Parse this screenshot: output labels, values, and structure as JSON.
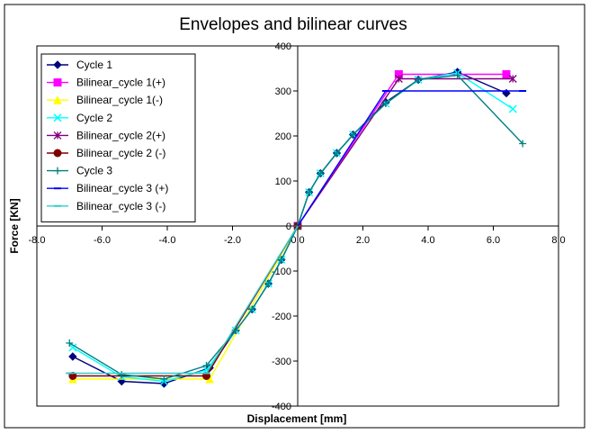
{
  "chart_data": {
    "type": "line",
    "title": "Envelopes and bilinear curves",
    "xlabel": "Displacement [mm]",
    "ylabel": "Force [KN]",
    "xlim": [
      -8,
      8
    ],
    "ylim": [
      -400,
      400
    ],
    "xticks": [
      "-8.0",
      "-6.0",
      "-4.0",
      "-2.0",
      "0.0",
      "2.0",
      "4.0",
      "6.0",
      "8.0"
    ],
    "yticks": [
      "-400",
      "-300",
      "-200",
      "-100",
      "0",
      "100",
      "200",
      "300",
      "400"
    ],
    "grid": false,
    "legend_position": "top-left",
    "series": [
      {
        "name": "Cycle 1",
        "color": "#000080",
        "marker": "diamond",
        "x": [
          -6.9,
          -5.4,
          -4.1,
          -2.7,
          -1.9,
          -1.4,
          -0.9,
          -0.5,
          0,
          0.35,
          0.7,
          1.2,
          1.7,
          2.7,
          3.7,
          4.9,
          6.4
        ],
        "y": [
          -290,
          -345,
          -350,
          -315,
          -232,
          -185,
          -128,
          -75,
          0,
          75,
          117,
          162,
          203,
          275,
          325,
          342,
          295
        ]
      },
      {
        "name": "Bilinear_cycle 1(+)",
        "color": "#ff00ff",
        "marker": "square",
        "x": [
          0,
          3.1,
          6.4
        ],
        "y": [
          0,
          337,
          337
        ]
      },
      {
        "name": "Bilinear_cycle 1(-)",
        "color": "#ffff00",
        "marker": "triangle",
        "x": [
          0,
          -2.7,
          -6.9
        ],
        "y": [
          0,
          -340,
          -340
        ]
      },
      {
        "name": "Cycle 2",
        "color": "#00ffff",
        "marker": "x",
        "x": [
          -6.9,
          -5.4,
          -4.1,
          -2.8,
          -1.9,
          -1.4,
          -0.9,
          -0.5,
          0,
          0.35,
          0.7,
          1.2,
          1.7,
          2.7,
          3.7,
          4.9,
          6.6
        ],
        "y": [
          -270,
          -335,
          -345,
          -320,
          -232,
          -185,
          -128,
          -75,
          0,
          75,
          117,
          162,
          203,
          272,
          325,
          340,
          260
        ]
      },
      {
        "name": "Bilinear_cycle 2(+)",
        "color": "#800080",
        "marker": "star",
        "x": [
          0,
          3.1,
          6.6
        ],
        "y": [
          0,
          327,
          327
        ]
      },
      {
        "name": "Bilinear_cycle 2 (-)",
        "color": "#800000",
        "marker": "circle",
        "x": [
          0,
          -2.8,
          -6.9
        ],
        "y": [
          0,
          -333,
          -333
        ]
      },
      {
        "name": "Cycle 3",
        "color": "#008080",
        "marker": "plus",
        "x": [
          -7.0,
          -5.4,
          -4.1,
          -2.8,
          -1.9,
          -1.4,
          -0.9,
          -0.5,
          0,
          0.35,
          0.7,
          1.2,
          1.7,
          2.7,
          3.7,
          4.9,
          6.9
        ],
        "y": [
          -260,
          -330,
          -340,
          -310,
          -232,
          -185,
          -128,
          -75,
          0,
          75,
          117,
          162,
          203,
          272,
          325,
          335,
          183
        ]
      },
      {
        "name": "Bilinear_cycle 3 (+)",
        "color": "#0000ff",
        "marker": "dash",
        "x": [
          0,
          2.7,
          6.9
        ],
        "y": [
          0,
          300,
          300
        ]
      },
      {
        "name": "Bilinear_cycle 3 (-)",
        "color": "#33cccc",
        "marker": "dash",
        "x": [
          0,
          -2.8,
          -7.0
        ],
        "y": [
          0,
          -327,
          -327
        ]
      }
    ]
  }
}
